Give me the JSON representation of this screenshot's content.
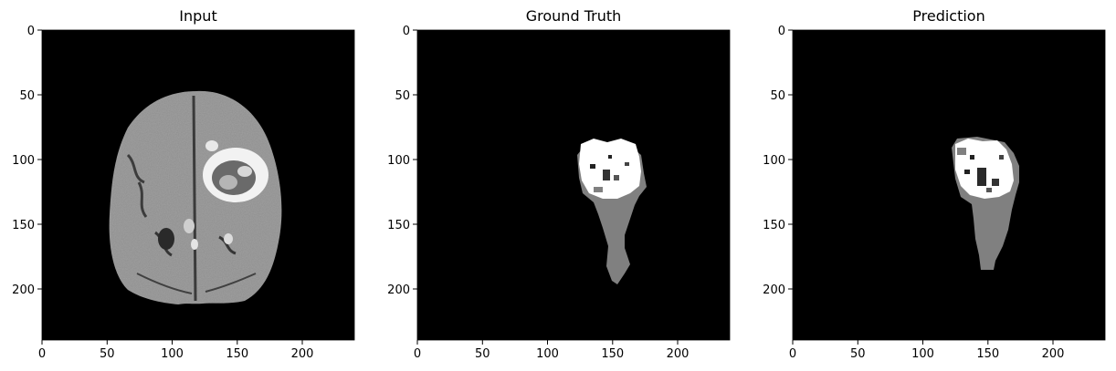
{
  "panels": [
    {
      "id": "input",
      "title": "Input"
    },
    {
      "id": "ground-truth",
      "title": "Ground Truth"
    },
    {
      "id": "prediction",
      "title": "Prediction"
    }
  ],
  "axes": {
    "x_ticks": [
      "0",
      "50",
      "100",
      "150",
      "200"
    ],
    "y_ticks": [
      "0",
      "50",
      "100",
      "150",
      "200"
    ],
    "x_tick_values": [
      0,
      50,
      100,
      150,
      200
    ],
    "y_tick_values": [
      0,
      50,
      100,
      150,
      200
    ],
    "xlim": [
      0,
      240
    ],
    "ylim": [
      240,
      0
    ]
  },
  "colors": {
    "background": "#ffffff",
    "image_bg": "#000000",
    "brain": "#8c8c8c",
    "mask_gray": "#808080",
    "mask_white": "#ffffff"
  }
}
